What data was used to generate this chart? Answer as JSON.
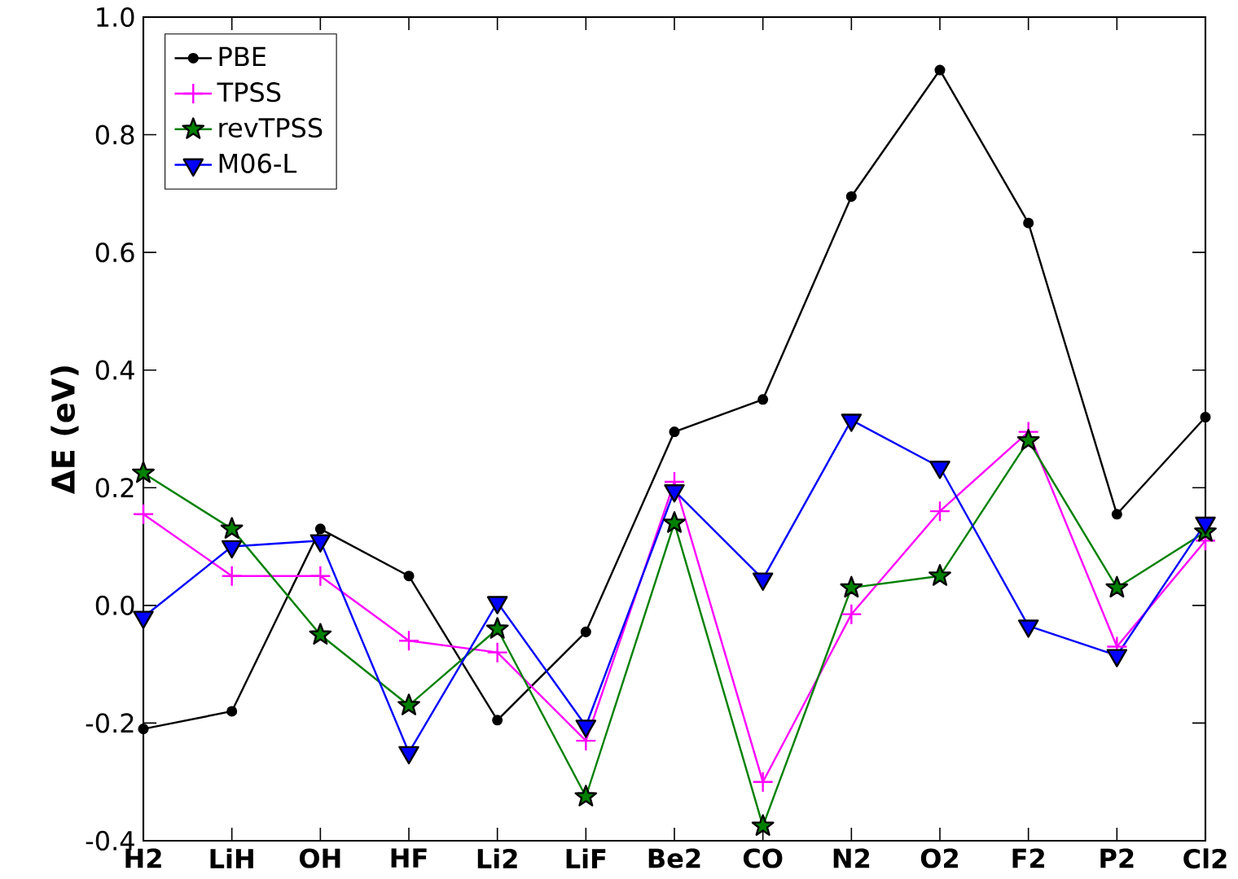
{
  "chart_data": {
    "type": "line",
    "ylabel": "**ΔE (eV)**",
    "categories": [
      "**H2**",
      "**LiH**",
      "**OH**",
      "**HF**",
      "**Li2**",
      "**LiF**",
      "**Be2**",
      "**CO**",
      "**N2**",
      "**O2**",
      "**F2**",
      "**P2**",
      "**Cl2**"
    ],
    "series": [
      {
        "name": "PBE",
        "color": "#000000",
        "marker": "circle",
        "values": [
          -0.21,
          -0.18,
          0.13,
          0.05,
          -0.195,
          -0.045,
          0.295,
          0.35,
          0.695,
          0.91,
          0.65,
          0.155,
          0.32
        ]
      },
      {
        "name": "TPSS",
        "color": "#ff00ff",
        "marker": "cross",
        "values": [
          0.155,
          0.05,
          0.05,
          -0.06,
          -0.08,
          -0.23,
          0.21,
          -0.3,
          -0.015,
          0.16,
          0.295,
          -0.07,
          0.11
        ]
      },
      {
        "name": "revTPSS",
        "color": "#008000",
        "marker": "star",
        "values": [
          0.225,
          0.13,
          -0.05,
          -0.17,
          -0.04,
          -0.325,
          0.14,
          -0.375,
          0.03,
          0.05,
          0.28,
          0.03,
          0.125
        ]
      },
      {
        "name": "M06-L",
        "color": "#0000ff",
        "marker": "triangle",
        "values": [
          -0.02,
          0.1,
          0.11,
          -0.25,
          0.005,
          -0.205,
          0.195,
          0.045,
          0.315,
          0.235,
          -0.035,
          -0.085,
          0.14
        ]
      }
    ],
    "ylim": [
      -0.4,
      1.0
    ],
    "yticks": [
      {
        "value": -0.4,
        "label": "-0.4"
      },
      {
        "value": -0.2,
        "label": "-0.2"
      },
      {
        "value": 0,
        "label": "0.0"
      },
      {
        "value": 0.2,
        "label": "0.2"
      },
      {
        "value": 0.4,
        "label": "0.4"
      },
      {
        "value": 0.6,
        "label": "0.6"
      },
      {
        "value": 0.8,
        "label": "0.8"
      },
      {
        "value": 1.0,
        "label": "1.0"
      }
    ],
    "grid": false,
    "legend": "top left",
    "line_style": "solid"
  }
}
